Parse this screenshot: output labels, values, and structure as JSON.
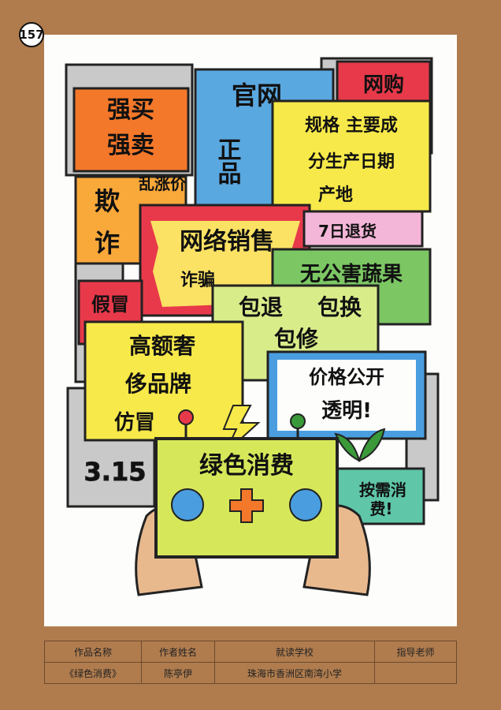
{
  "page_number": "157",
  "artwork": {
    "signs": {
      "force_buy": [
        "强买",
        "强卖"
      ],
      "official": [
        "官网",
        "正品"
      ],
      "online_shopping": "网购",
      "specs": [
        "规格 主要成",
        "分生产日期",
        "产地"
      ],
      "random_price": "乱涨价",
      "fraud": [
        "欺",
        "诈"
      ],
      "online_sales": "网络销售",
      "scam": "诈骗",
      "return_7_days": "7日退货",
      "pollution_free": "无公害蔬果",
      "fake": "假冒",
      "warranty": [
        "包退",
        "包换",
        "包修"
      ],
      "luxury": [
        "高额奢",
        "侈品牌",
        "仿冒"
      ],
      "price_open": [
        "价格公开",
        "透明!"
      ],
      "date": "3.15",
      "consume_on_demand": [
        "按需消",
        "费!"
      ],
      "green_consumption": "绿色消费"
    }
  },
  "table": {
    "headers": [
      "作品名称",
      "作者姓名",
      "就读学校",
      "指导老师"
    ],
    "values": [
      "《绿色消费》",
      "陈亭伊",
      "珠海市香洲区南湾小学",
      ""
    ]
  }
}
